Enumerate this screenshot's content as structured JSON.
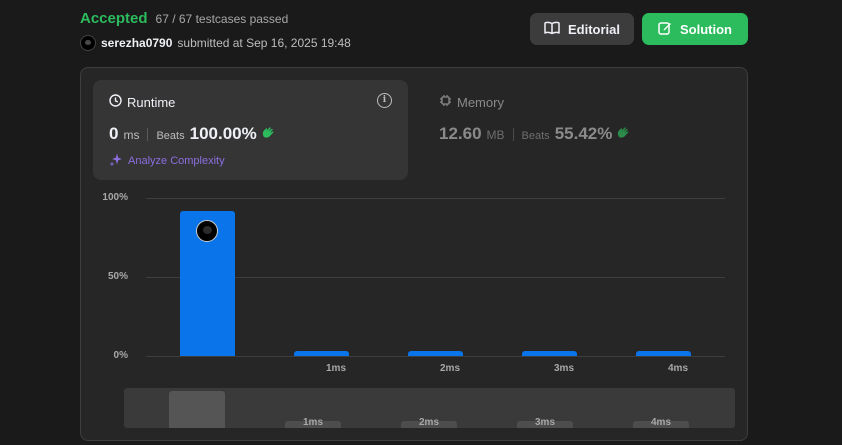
{
  "header": {
    "status": "Accepted",
    "testcases": "67 / 67 testcases passed",
    "username": "serezha0790",
    "submitted_text": "submitted at Sep 16, 2025 19:48",
    "editorial_label": "Editorial",
    "solution_label": "Solution"
  },
  "runtime": {
    "title": "Runtime",
    "value": "0",
    "unit": "ms",
    "beats_label": "Beats",
    "beats_value": "100.00%",
    "analyze_label": "Analyze Complexity"
  },
  "memory": {
    "title": "Memory",
    "value": "12.60",
    "unit": "MB",
    "beats_label": "Beats",
    "beats_value": "55.42%"
  },
  "colors": {
    "accent_green": "#2cbb5d",
    "bar_blue": "#0a74ea",
    "analyze_purple": "#8c6fe0"
  },
  "chart_data": {
    "type": "bar",
    "categories": [
      "",
      "1ms",
      "2ms",
      "3ms",
      "4ms"
    ],
    "values": [
      92,
      3,
      3,
      3,
      3
    ],
    "y_ticks": [
      "100%",
      "50%",
      "0%"
    ],
    "ylim": [
      0,
      100
    ],
    "grid": true
  },
  "brush": {
    "labels": [
      "1ms",
      "2ms",
      "3ms",
      "4ms"
    ]
  }
}
